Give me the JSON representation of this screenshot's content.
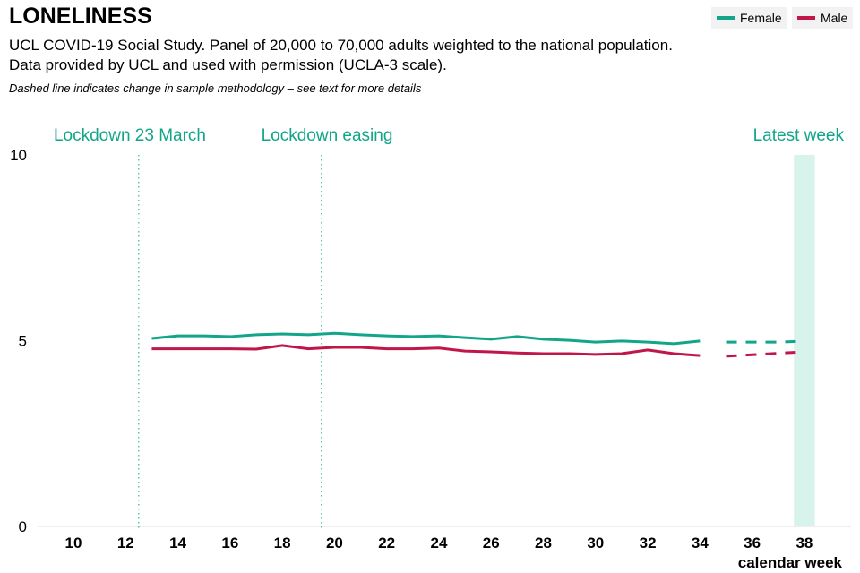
{
  "header": {
    "title": "LONELINESS",
    "subtitle_1": "UCL COVID-19 Social Study. Panel of 20,000 to 70,000 adults weighted to the national population.",
    "subtitle_2": "Data provided by UCL and used with permission (UCLA-3 scale).",
    "note": "Dashed line indicates change in sample methodology – see text for more details"
  },
  "chart_data": {
    "type": "line",
    "xlabel": "calendar week",
    "ylabel": "",
    "xlim": [
      9,
      39.5
    ],
    "ylim": [
      0,
      10
    ],
    "x_ticks": [
      10,
      12,
      14,
      16,
      18,
      20,
      22,
      24,
      26,
      28,
      30,
      32,
      34,
      36,
      38
    ],
    "y_ticks": [
      0,
      5,
      10
    ],
    "grid": false,
    "legend": "top-right",
    "annotations": [
      {
        "label": "Lockdown 23 March",
        "x": 12.5
      },
      {
        "label": "Lockdown easing",
        "x": 19.5
      },
      {
        "label": "Latest week",
        "x": 38
      }
    ],
    "series": [
      {
        "name": "Female",
        "color": "#12a58a",
        "x": [
          13,
          14,
          15,
          16,
          17,
          18,
          19,
          20,
          21,
          22,
          23,
          24,
          25,
          26,
          27,
          28,
          29,
          30,
          31,
          32,
          33,
          34
        ],
        "values": [
          5.06,
          5.13,
          5.13,
          5.11,
          5.16,
          5.18,
          5.16,
          5.2,
          5.16,
          5.13,
          5.11,
          5.13,
          5.08,
          5.04,
          5.11,
          5.04,
          5.01,
          4.96,
          4.99,
          4.96,
          4.92,
          4.99
        ],
        "dashed_x": [
          35,
          36,
          37,
          38
        ],
        "dashed_values": [
          4.96,
          4.96,
          4.96,
          4.99
        ]
      },
      {
        "name": "Male",
        "color": "#c0164a",
        "x": [
          13,
          14,
          15,
          16,
          17,
          18,
          19,
          20,
          21,
          22,
          23,
          24,
          25,
          26,
          27,
          28,
          29,
          30,
          31,
          32,
          33,
          34
        ],
        "values": [
          4.78,
          4.78,
          4.78,
          4.78,
          4.77,
          4.87,
          4.78,
          4.82,
          4.82,
          4.78,
          4.78,
          4.8,
          4.72,
          4.7,
          4.67,
          4.65,
          4.65,
          4.63,
          4.65,
          4.75,
          4.65,
          4.6
        ],
        "dashed_x": [
          35,
          36,
          37,
          38
        ],
        "dashed_values": [
          4.58,
          4.62,
          4.66,
          4.7
        ]
      }
    ]
  }
}
